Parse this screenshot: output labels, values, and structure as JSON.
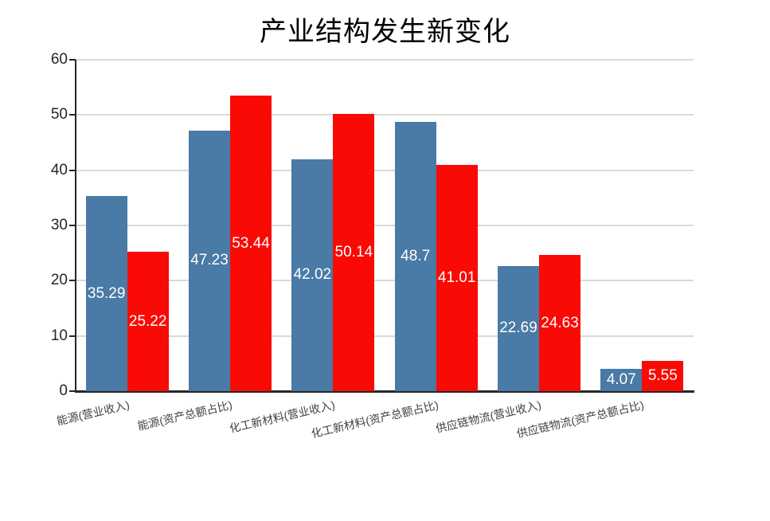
{
  "title": "产业结构发生新变化",
  "chart_data": {
    "type": "bar",
    "title": "产业结构发生新变化",
    "categories": [
      "能源(营业收入)",
      "能源(资产总额占比)",
      "化工新材料(营业收入)",
      "化工新材料(资产总额占比)",
      "供应链物流(营业收入)",
      "供应链物流(资产总额占比)"
    ],
    "series": [
      {
        "name": "blue-series",
        "color": "#4a7aa6",
        "values": [
          35.29,
          47.23,
          42.02,
          48.7,
          22.69,
          4.07
        ]
      },
      {
        "name": "red-series",
        "color": "#fa0a05",
        "values": [
          25.22,
          53.44,
          50.14,
          41.01,
          24.63,
          5.55
        ]
      }
    ],
    "ylim": [
      0,
      60
    ],
    "yticks": [
      0,
      10,
      20,
      30,
      40,
      50,
      60
    ],
    "grid": true,
    "legend": false,
    "label_position": "inside-center",
    "label_color": "#ffffff",
    "xlabel": "",
    "ylabel": ""
  },
  "colors": {
    "axis": "#262626",
    "grid": "#d9d9d9",
    "y_tick_label": "#262626",
    "x_tick_label": "#404040",
    "background": "#ffffff"
  }
}
